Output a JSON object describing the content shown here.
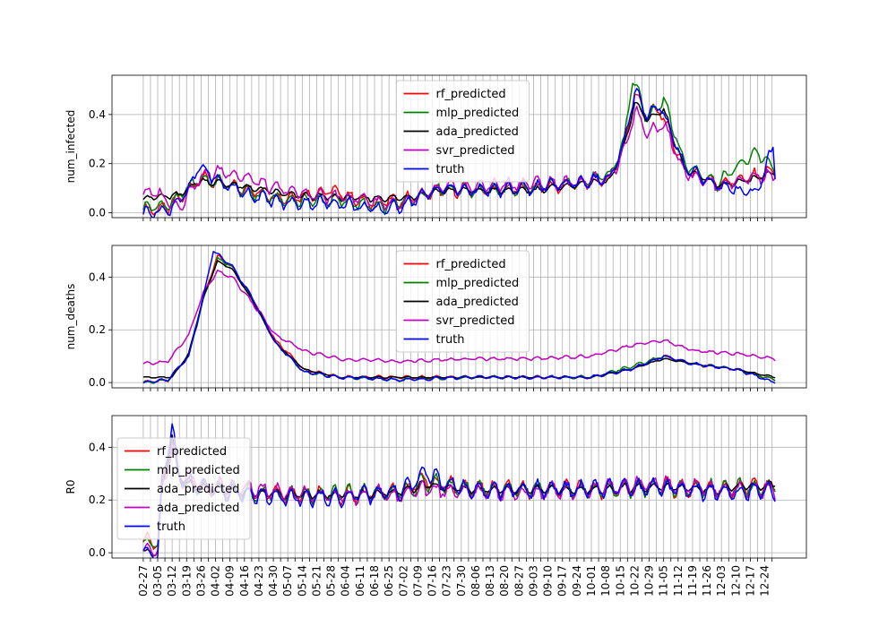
{
  "chart_data": [
    {
      "type": "line",
      "ylabel": "num_infected",
      "ylim": [
        -0.02,
        0.56
      ],
      "yticks": [
        0.0,
        0.2,
        0.4
      ],
      "ytick_labels": [
        "0.0",
        "0.2",
        "0.4"
      ],
      "grid": true,
      "legend_position": "upper-center",
      "legend": [
        "rf_predicted",
        "mlp_predicted",
        "ada_predicted",
        "svr_predicted",
        "truth"
      ],
      "x_start": "2020-02-27",
      "x_end": "2020-12-29",
      "series": [
        {
          "name": "rf_predicted",
          "color": "#ff0000",
          "x": [
            "2020-02-27",
            "2020-03-10",
            "2020-03-20",
            "2020-03-25",
            "2020-04-05",
            "2020-04-20",
            "2020-05-05",
            "2020-05-28",
            "2020-06-15",
            "2020-07-01",
            "2020-07-20",
            "2020-08-10",
            "2020-09-01",
            "2020-09-20",
            "2020-10-10",
            "2020-10-17",
            "2020-10-22",
            "2020-10-28",
            "2020-11-03",
            "2020-11-15",
            "2020-12-01",
            "2020-12-15",
            "2020-12-29"
          ],
          "values": [
            0.01,
            0.02,
            0.09,
            0.14,
            0.12,
            0.09,
            0.06,
            0.09,
            0.04,
            0.05,
            0.09,
            0.09,
            0.1,
            0.11,
            0.14,
            0.28,
            0.48,
            0.4,
            0.42,
            0.18,
            0.12,
            0.14,
            0.17
          ]
        },
        {
          "name": "mlp_predicted",
          "color": "#008000",
          "x": [
            "2020-02-27",
            "2020-03-10",
            "2020-03-20",
            "2020-03-25",
            "2020-04-05",
            "2020-04-20",
            "2020-05-05",
            "2020-06-01",
            "2020-06-20",
            "2020-07-01",
            "2020-07-20",
            "2020-08-10",
            "2020-09-01",
            "2020-09-20",
            "2020-10-10",
            "2020-10-17",
            "2020-10-21",
            "2020-10-28",
            "2020-11-05",
            "2020-11-15",
            "2020-12-01",
            "2020-12-20",
            "2020-12-29"
          ],
          "values": [
            0.02,
            0.03,
            0.1,
            0.14,
            0.12,
            0.08,
            0.05,
            0.05,
            0.02,
            0.04,
            0.1,
            0.09,
            0.1,
            0.12,
            0.15,
            0.3,
            0.55,
            0.38,
            0.47,
            0.2,
            0.12,
            0.25,
            0.17
          ]
        },
        {
          "name": "ada_predicted",
          "color": "#000000",
          "x": [
            "2020-02-27",
            "2020-03-15",
            "2020-03-25",
            "2020-04-05",
            "2020-04-20",
            "2020-05-10",
            "2020-06-10",
            "2020-07-01",
            "2020-07-20",
            "2020-08-10",
            "2020-09-01",
            "2020-09-20",
            "2020-10-10",
            "2020-10-17",
            "2020-10-22",
            "2020-10-28",
            "2020-11-05",
            "2020-11-15",
            "2020-12-01",
            "2020-12-15",
            "2020-12-29"
          ],
          "values": [
            0.06,
            0.07,
            0.13,
            0.12,
            0.1,
            0.07,
            0.06,
            0.06,
            0.09,
            0.09,
            0.09,
            0.11,
            0.13,
            0.27,
            0.45,
            0.38,
            0.42,
            0.18,
            0.11,
            0.13,
            0.16
          ]
        },
        {
          "name": "svr_predicted",
          "color": "#bf00bf",
          "x": [
            "2020-02-27",
            "2020-03-05",
            "2020-03-15",
            "2020-03-25",
            "2020-04-05",
            "2020-04-15",
            "2020-04-30",
            "2020-05-20",
            "2020-06-10",
            "2020-07-01",
            "2020-07-20",
            "2020-08-10",
            "2020-09-01",
            "2020-09-20",
            "2020-10-10",
            "2020-10-17",
            "2020-10-22",
            "2020-10-28",
            "2020-11-05",
            "2020-11-15",
            "2020-12-01",
            "2020-12-20",
            "2020-12-29"
          ],
          "values": [
            0.08,
            0.08,
            0.02,
            0.14,
            0.17,
            0.15,
            0.1,
            0.07,
            0.06,
            0.03,
            0.1,
            0.11,
            0.12,
            0.12,
            0.14,
            0.25,
            0.42,
            0.33,
            0.36,
            0.17,
            0.11,
            0.15,
            0.15
          ]
        },
        {
          "name": "truth",
          "color": "#0000ff",
          "x": [
            "2020-02-27",
            "2020-03-10",
            "2020-03-20",
            "2020-03-25",
            "2020-04-05",
            "2020-04-20",
            "2020-05-05",
            "2020-06-01",
            "2020-06-20",
            "2020-07-01",
            "2020-07-20",
            "2020-08-10",
            "2020-09-01",
            "2020-09-20",
            "2020-10-10",
            "2020-10-17",
            "2020-10-22",
            "2020-10-28",
            "2020-11-03",
            "2020-11-15",
            "2020-12-01",
            "2020-12-20",
            "2020-12-28",
            "2020-12-29"
          ],
          "values": [
            0.0,
            0.01,
            0.09,
            0.19,
            0.12,
            0.07,
            0.04,
            0.04,
            0.01,
            0.03,
            0.1,
            0.09,
            0.1,
            0.12,
            0.14,
            0.28,
            0.5,
            0.4,
            0.44,
            0.19,
            0.11,
            0.08,
            0.27,
            0.15
          ]
        }
      ]
    },
    {
      "type": "line",
      "ylabel": "num_deaths",
      "ylim": [
        -0.02,
        0.52
      ],
      "yticks": [
        0.0,
        0.2,
        0.4
      ],
      "ytick_labels": [
        "0.0",
        "0.2",
        "0.4"
      ],
      "grid": true,
      "legend_position": "upper-center",
      "legend": [
        "rf_predicted",
        "mlp_predicted",
        "ada_predicted",
        "svr_predicted",
        "truth"
      ],
      "x_start": "2020-02-27",
      "x_end": "2020-12-29",
      "series": [
        {
          "name": "rf_predicted",
          "color": "#ff0000",
          "x": [
            "2020-02-27",
            "2020-03-10",
            "2020-03-20",
            "2020-03-27",
            "2020-04-03",
            "2020-04-10",
            "2020-04-20",
            "2020-05-01",
            "2020-05-15",
            "2020-06-01",
            "2020-07-01",
            "2020-08-01",
            "2020-09-01",
            "2020-10-01",
            "2020-10-20",
            "2020-11-05",
            "2020-11-20",
            "2020-12-10",
            "2020-12-29"
          ],
          "values": [
            0.0,
            0.01,
            0.1,
            0.32,
            0.48,
            0.44,
            0.32,
            0.16,
            0.05,
            0.02,
            0.02,
            0.02,
            0.02,
            0.02,
            0.05,
            0.1,
            0.07,
            0.05,
            0.01
          ]
        },
        {
          "name": "mlp_predicted",
          "color": "#008000",
          "x": [
            "2020-02-27",
            "2020-03-10",
            "2020-03-20",
            "2020-03-27",
            "2020-04-03",
            "2020-04-10",
            "2020-04-20",
            "2020-05-01",
            "2020-05-15",
            "2020-06-01",
            "2020-07-01",
            "2020-08-01",
            "2020-09-01",
            "2020-10-01",
            "2020-10-20",
            "2020-11-05",
            "2020-11-20",
            "2020-12-10",
            "2020-12-29"
          ],
          "values": [
            0.0,
            0.01,
            0.1,
            0.31,
            0.47,
            0.44,
            0.31,
            0.15,
            0.04,
            0.02,
            0.01,
            0.02,
            0.02,
            0.02,
            0.06,
            0.1,
            0.07,
            0.05,
            0.01
          ]
        },
        {
          "name": "ada_predicted",
          "color": "#000000",
          "x": [
            "2020-02-27",
            "2020-03-12",
            "2020-03-20",
            "2020-03-27",
            "2020-04-03",
            "2020-04-10",
            "2020-04-20",
            "2020-05-01",
            "2020-05-15",
            "2020-06-01",
            "2020-07-01",
            "2020-08-01",
            "2020-09-01",
            "2020-10-01",
            "2020-10-20",
            "2020-11-05",
            "2020-11-20",
            "2020-12-10",
            "2020-12-29"
          ],
          "values": [
            0.02,
            0.02,
            0.11,
            0.32,
            0.46,
            0.43,
            0.31,
            0.15,
            0.05,
            0.02,
            0.02,
            0.02,
            0.02,
            0.02,
            0.05,
            0.09,
            0.07,
            0.05,
            0.02
          ]
        },
        {
          "name": "svr_predicted",
          "color": "#bf00bf",
          "x": [
            "2020-02-27",
            "2020-03-10",
            "2020-03-20",
            "2020-03-27",
            "2020-04-03",
            "2020-04-10",
            "2020-04-20",
            "2020-05-01",
            "2020-05-15",
            "2020-06-01",
            "2020-07-01",
            "2020-08-01",
            "2020-09-01",
            "2020-10-01",
            "2020-10-20",
            "2020-11-05",
            "2020-11-20",
            "2020-12-10",
            "2020-12-29"
          ],
          "values": [
            0.07,
            0.08,
            0.18,
            0.34,
            0.42,
            0.4,
            0.3,
            0.18,
            0.12,
            0.09,
            0.08,
            0.09,
            0.09,
            0.1,
            0.14,
            0.16,
            0.12,
            0.11,
            0.09
          ]
        },
        {
          "name": "truth",
          "color": "#0000ff",
          "x": [
            "2020-02-27",
            "2020-03-10",
            "2020-03-20",
            "2020-03-27",
            "2020-04-01",
            "2020-04-10",
            "2020-04-20",
            "2020-05-01",
            "2020-05-15",
            "2020-06-01",
            "2020-07-01",
            "2020-08-01",
            "2020-09-01",
            "2020-10-01",
            "2020-10-20",
            "2020-11-05",
            "2020-11-20",
            "2020-12-10",
            "2020-12-29"
          ],
          "values": [
            0.0,
            0.01,
            0.1,
            0.32,
            0.5,
            0.44,
            0.32,
            0.15,
            0.04,
            0.02,
            0.01,
            0.02,
            0.02,
            0.02,
            0.05,
            0.1,
            0.07,
            0.05,
            0.0
          ]
        }
      ]
    },
    {
      "type": "line",
      "ylabel": "R0",
      "ylim": [
        -0.02,
        0.52
      ],
      "yticks": [
        0.0,
        0.2,
        0.4
      ],
      "ytick_labels": [
        "0.0",
        "0.2",
        "0.4"
      ],
      "grid": true,
      "legend_position": "center-left",
      "legend": [
        "rf_predicted",
        "mlp_predicted",
        "ada_predicted",
        "ada_predicted",
        "truth"
      ],
      "x_start": "2020-02-27",
      "x_end": "2020-12-29",
      "xtick_labels": [
        "02-27",
        "03-05",
        "03-12",
        "03-19",
        "03-26",
        "04-02",
        "04-09",
        "04-16",
        "04-23",
        "04-30",
        "05-07",
        "05-14",
        "05-21",
        "05-28",
        "06-04",
        "06-11",
        "06-18",
        "06-25",
        "07-02",
        "07-09",
        "07-16",
        "07-23",
        "07-30",
        "08-06",
        "08-13",
        "08-20",
        "08-27",
        "09-03",
        "09-10",
        "09-17",
        "09-24",
        "10-01",
        "10-08",
        "10-15",
        "10-22",
        "10-29",
        "11-05",
        "11-12",
        "11-19",
        "11-26",
        "12-03",
        "12-10",
        "12-17",
        "12-24"
      ],
      "series": [
        {
          "name": "rf_predicted",
          "color": "#ff0000",
          "x": [
            "2020-02-27",
            "2020-03-05",
            "2020-03-07",
            "2020-03-12",
            "2020-03-15",
            "2020-03-20",
            "2020-04-01",
            "2020-04-20",
            "2020-05-10",
            "2020-06-01",
            "2020-07-01",
            "2020-07-12",
            "2020-08-01",
            "2020-09-01",
            "2020-10-01",
            "2020-11-01",
            "2020-12-01",
            "2020-12-29"
          ],
          "values": [
            0.04,
            0.04,
            0.25,
            0.45,
            0.3,
            0.26,
            0.24,
            0.23,
            0.22,
            0.22,
            0.23,
            0.28,
            0.24,
            0.24,
            0.24,
            0.25,
            0.24,
            0.25
          ]
        },
        {
          "name": "mlp_predicted",
          "color": "#008000",
          "x": [
            "2020-02-27",
            "2020-03-05",
            "2020-03-07",
            "2020-03-12",
            "2020-03-15",
            "2020-03-20",
            "2020-04-01",
            "2020-04-20",
            "2020-05-10",
            "2020-06-01",
            "2020-07-01",
            "2020-07-12",
            "2020-08-01",
            "2020-09-01",
            "2020-10-01",
            "2020-11-01",
            "2020-12-01",
            "2020-12-29"
          ],
          "values": [
            0.04,
            0.04,
            0.24,
            0.42,
            0.29,
            0.25,
            0.24,
            0.23,
            0.22,
            0.22,
            0.23,
            0.27,
            0.24,
            0.24,
            0.24,
            0.25,
            0.24,
            0.25
          ]
        },
        {
          "name": "ada_predicted",
          "color": "#000000",
          "x": [
            "2020-02-27",
            "2020-03-05",
            "2020-03-07",
            "2020-03-12",
            "2020-03-15",
            "2020-03-20",
            "2020-04-01",
            "2020-04-20",
            "2020-05-10",
            "2020-06-01",
            "2020-07-01",
            "2020-07-12",
            "2020-08-01",
            "2020-09-01",
            "2020-10-01",
            "2020-11-01",
            "2020-12-01",
            "2020-12-29"
          ],
          "values": [
            0.0,
            0.0,
            0.24,
            0.44,
            0.29,
            0.26,
            0.24,
            0.23,
            0.22,
            0.22,
            0.23,
            0.26,
            0.24,
            0.24,
            0.24,
            0.25,
            0.24,
            0.26
          ]
        },
        {
          "name": "ada_predicted",
          "color": "#bf00bf",
          "x": [
            "2020-02-27",
            "2020-03-05",
            "2020-03-07",
            "2020-03-12",
            "2020-03-15",
            "2020-03-20",
            "2020-04-01",
            "2020-04-20",
            "2020-05-10",
            "2020-06-01",
            "2020-07-01",
            "2020-07-12",
            "2020-08-01",
            "2020-09-01",
            "2020-10-01",
            "2020-11-01",
            "2020-12-01",
            "2020-12-29"
          ],
          "values": [
            0.0,
            0.0,
            0.22,
            0.4,
            0.3,
            0.28,
            0.25,
            0.24,
            0.22,
            0.22,
            0.22,
            0.24,
            0.23,
            0.23,
            0.24,
            0.26,
            0.24,
            0.24
          ]
        },
        {
          "name": "truth",
          "color": "#0000ff",
          "x": [
            "2020-02-27",
            "2020-03-05",
            "2020-03-07",
            "2020-03-12",
            "2020-03-15",
            "2020-03-20",
            "2020-04-01",
            "2020-04-20",
            "2020-05-10",
            "2020-06-01",
            "2020-07-01",
            "2020-07-12",
            "2020-08-01",
            "2020-09-01",
            "2020-10-01",
            "2020-11-01",
            "2020-12-01",
            "2020-12-29"
          ],
          "values": [
            0.0,
            0.0,
            0.25,
            0.49,
            0.3,
            0.26,
            0.24,
            0.22,
            0.21,
            0.21,
            0.23,
            0.3,
            0.24,
            0.24,
            0.24,
            0.25,
            0.23,
            0.23
          ]
        }
      ]
    }
  ]
}
